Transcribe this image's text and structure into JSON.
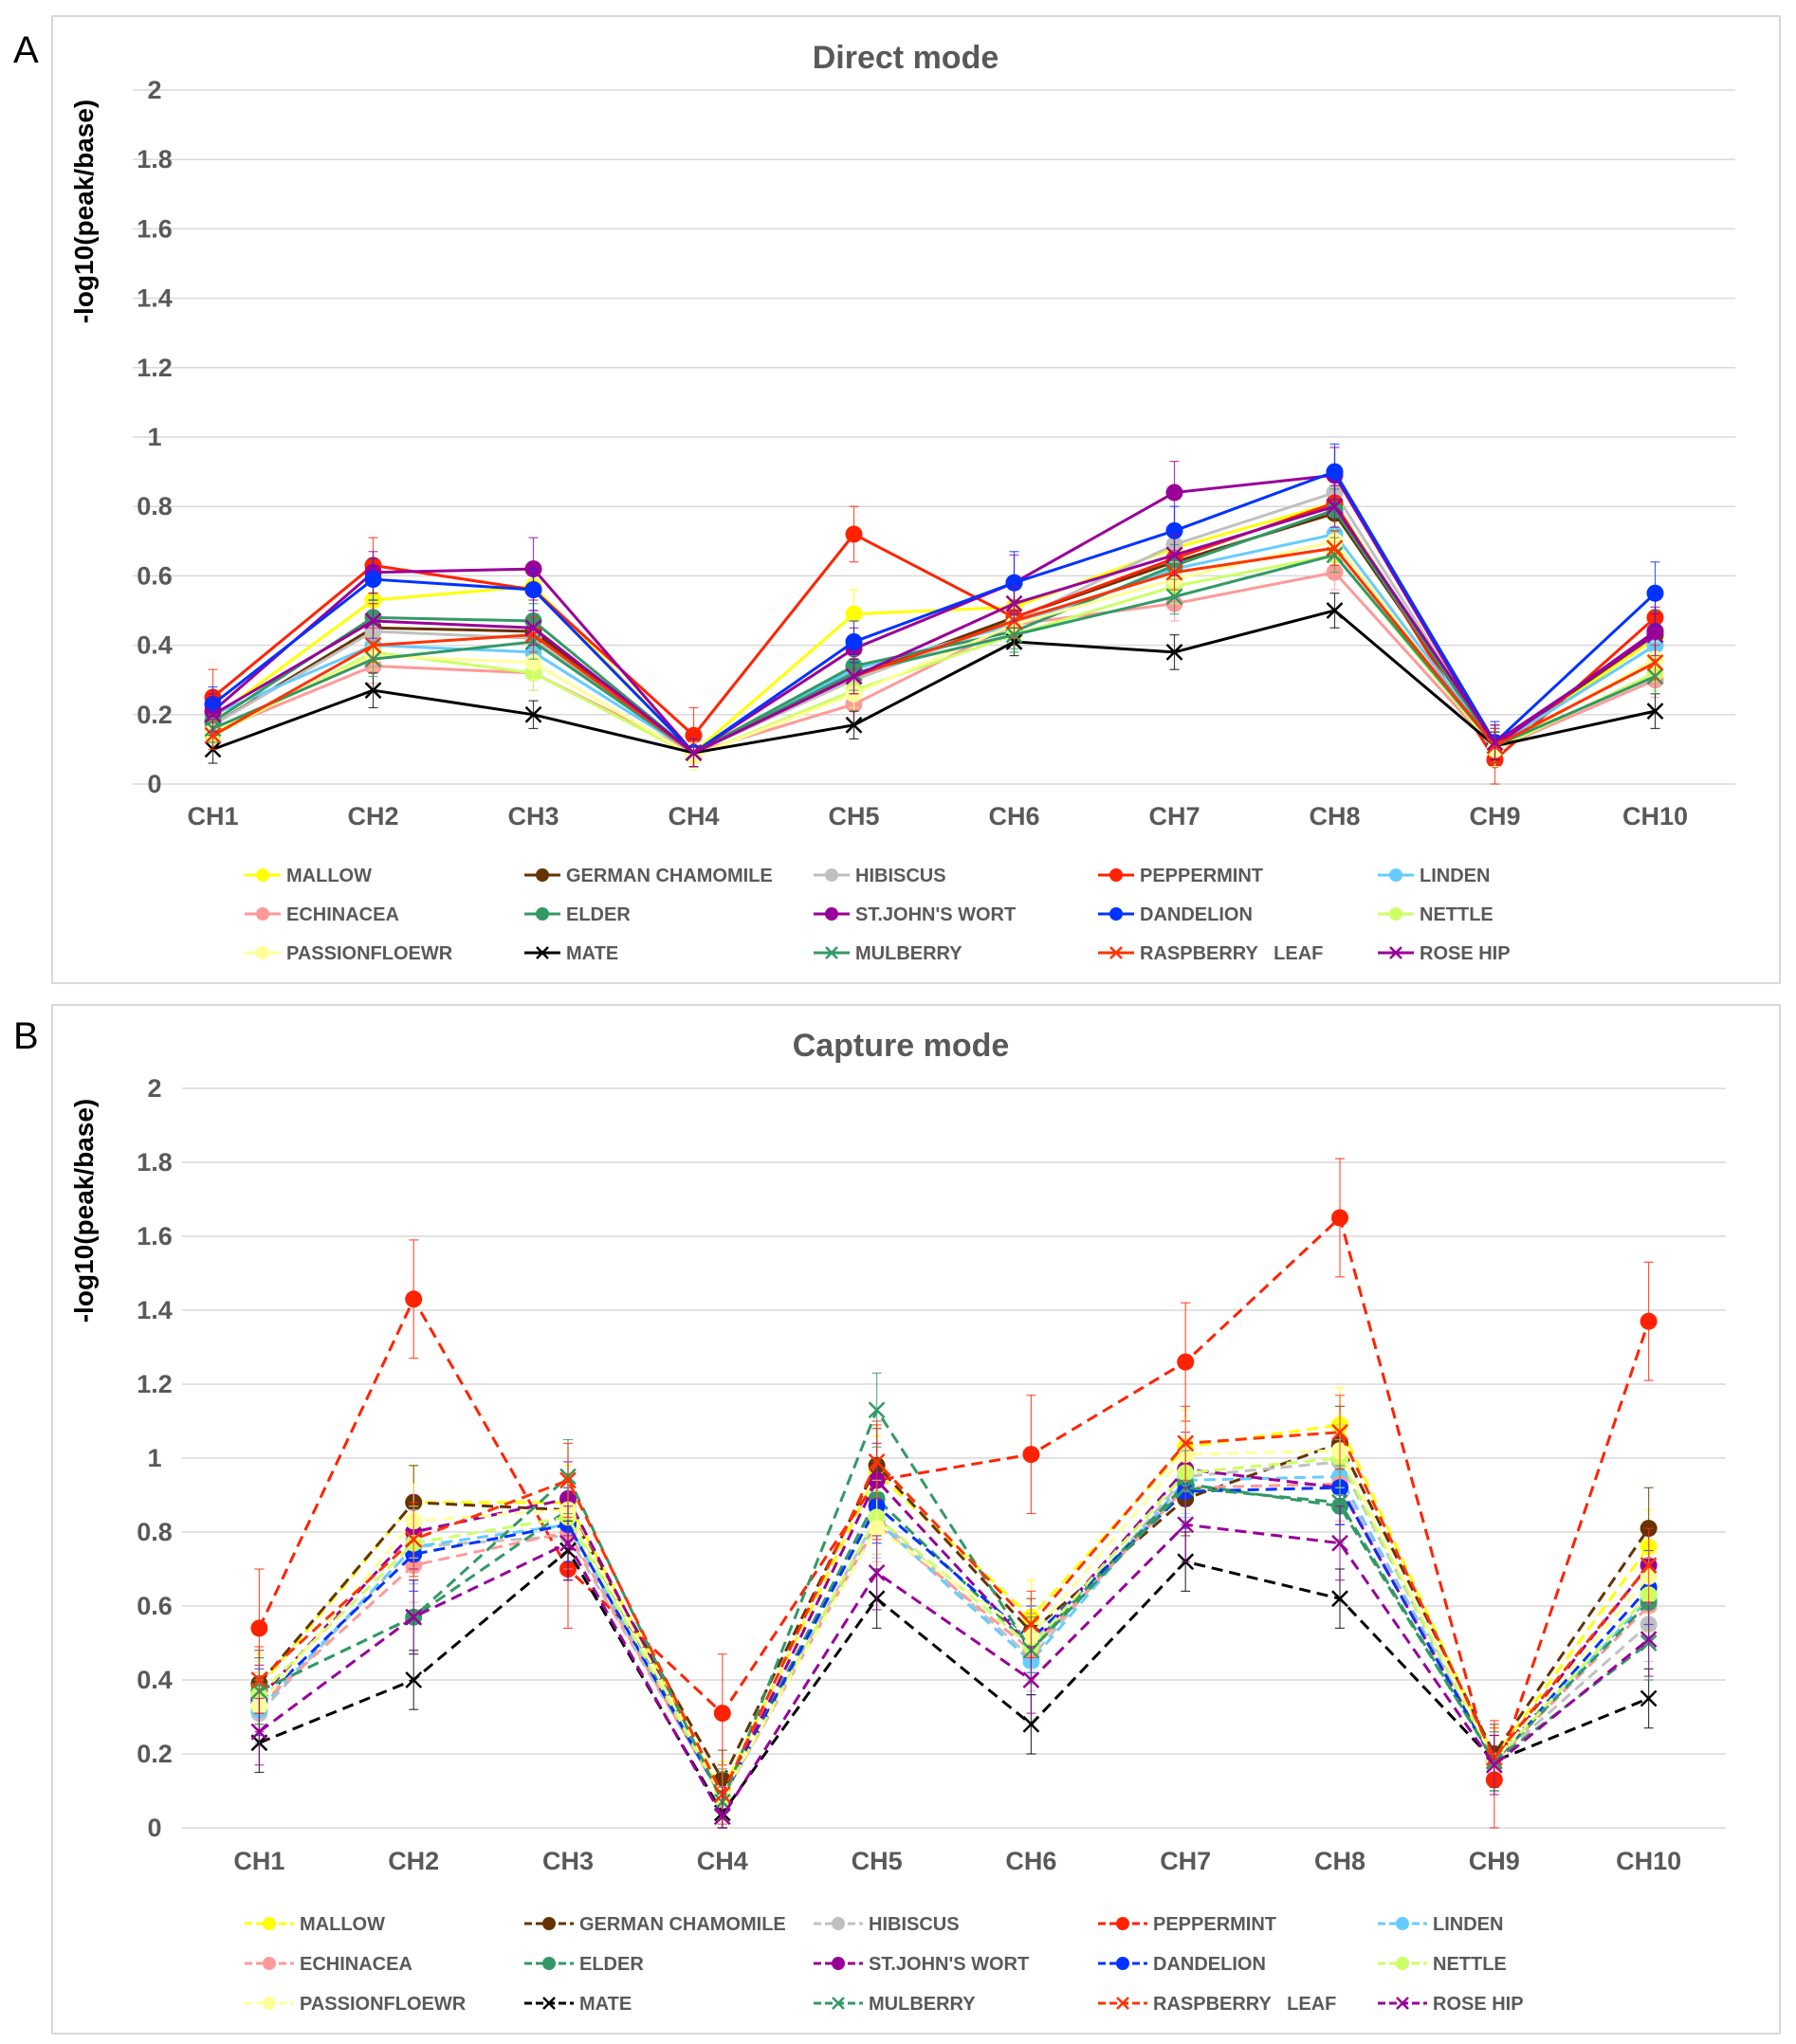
{
  "chart_data": [
    {
      "type": "line",
      "panel_label": "A",
      "title": "Direct mode",
      "xlabel": "",
      "ylabel": "-log10(peak/base)",
      "ylim": [
        0,
        2
      ],
      "ytick_labels": [
        "0",
        "0.2",
        "0.4",
        "0.6",
        "0.8",
        "1",
        "1.2",
        "1.4",
        "1.6",
        "1.8",
        "2"
      ],
      "categories": [
        "CH1",
        "CH2",
        "CH3",
        "CH4",
        "CH5",
        "CH6",
        "CH7",
        "CH8",
        "CH9",
        "CH10"
      ],
      "grid": true,
      "line_style": "solid",
      "legend_position": "bottom",
      "series": [
        {
          "name": "MALLOW",
          "color": "#FFFF00",
          "marker": "circle",
          "values": [
            0.19,
            0.53,
            0.57,
            0.09,
            0.49,
            0.51,
            0.68,
            0.81,
            0.1,
            0.42
          ],
          "errors": [
            0.05,
            0.05,
            0.05,
            0.04,
            0.07,
            0.06,
            0.06,
            0.06,
            0.05,
            0.06
          ]
        },
        {
          "name": "GERMAN CHAMOMILE",
          "color": "#663300",
          "marker": "circle",
          "values": [
            0.17,
            0.45,
            0.44,
            0.09,
            0.31,
            0.48,
            0.64,
            0.78,
            0.11,
            0.43
          ],
          "errors": [
            0.04,
            0.05,
            0.05,
            0.04,
            0.05,
            0.05,
            0.06,
            0.06,
            0.05,
            0.06
          ]
        },
        {
          "name": "HIBISCUS",
          "color": "#C0C0C0",
          "marker": "circle",
          "values": [
            0.17,
            0.44,
            0.42,
            0.09,
            0.3,
            0.47,
            0.69,
            0.84,
            0.11,
            0.4
          ],
          "errors": [
            0.04,
            0.05,
            0.05,
            0.04,
            0.05,
            0.05,
            0.06,
            0.06,
            0.05,
            0.06
          ]
        },
        {
          "name": "PEPPERMINT",
          "color": "#FF2200",
          "marker": "circle",
          "values": [
            0.25,
            0.63,
            0.56,
            0.14,
            0.72,
            0.48,
            0.65,
            0.81,
            0.07,
            0.48
          ],
          "errors": [
            0.08,
            0.08,
            0.07,
            0.08,
            0.08,
            0.08,
            0.07,
            0.07,
            0.08,
            0.08
          ]
        },
        {
          "name": "LINDEN",
          "color": "#66CCFF",
          "marker": "circle",
          "values": [
            0.2,
            0.4,
            0.38,
            0.09,
            0.33,
            0.46,
            0.62,
            0.72,
            0.11,
            0.4
          ],
          "errors": [
            0.04,
            0.05,
            0.05,
            0.04,
            0.05,
            0.05,
            0.05,
            0.06,
            0.05,
            0.05
          ]
        },
        {
          "name": "ECHINACEA",
          "color": "#FF9999",
          "marker": "circle",
          "values": [
            0.15,
            0.34,
            0.32,
            0.09,
            0.23,
            0.46,
            0.52,
            0.61,
            0.1,
            0.3
          ],
          "errors": [
            0.04,
            0.05,
            0.05,
            0.04,
            0.05,
            0.05,
            0.05,
            0.05,
            0.05,
            0.05
          ]
        },
        {
          "name": "ELDER",
          "color": "#339966",
          "marker": "circle",
          "values": [
            0.18,
            0.48,
            0.47,
            0.09,
            0.34,
            0.44,
            0.63,
            0.79,
            0.11,
            0.44
          ],
          "errors": [
            0.04,
            0.05,
            0.05,
            0.04,
            0.05,
            0.05,
            0.06,
            0.06,
            0.05,
            0.06
          ]
        },
        {
          "name": "ST.JOHN'S WORT",
          "color": "#990099",
          "marker": "circle",
          "values": [
            0.21,
            0.61,
            0.62,
            0.09,
            0.39,
            0.58,
            0.84,
            0.89,
            0.11,
            0.44
          ],
          "errors": [
            0.05,
            0.06,
            0.09,
            0.04,
            0.06,
            0.08,
            0.09,
            0.08,
            0.06,
            0.07
          ]
        },
        {
          "name": "DANDELION",
          "color": "#0033FF",
          "marker": "circle",
          "values": [
            0.23,
            0.59,
            0.56,
            0.09,
            0.41,
            0.58,
            0.73,
            0.9,
            0.12,
            0.55
          ],
          "errors": [
            0.05,
            0.06,
            0.06,
            0.04,
            0.06,
            0.09,
            0.07,
            0.08,
            0.06,
            0.09
          ]
        },
        {
          "name": "NETTLE",
          "color": "#CCFF66",
          "marker": "circle",
          "values": [
            0.14,
            0.38,
            0.32,
            0.08,
            0.27,
            0.43,
            0.57,
            0.66,
            0.1,
            0.32
          ],
          "errors": [
            0.04,
            0.05,
            0.05,
            0.04,
            0.05,
            0.05,
            0.05,
            0.05,
            0.05,
            0.05
          ]
        },
        {
          "name": "PASSIONFLOEWR",
          "color": "#FFFF99",
          "marker": "circle",
          "values": [
            0.15,
            0.37,
            0.35,
            0.08,
            0.26,
            0.46,
            0.59,
            0.7,
            0.1,
            0.36
          ],
          "errors": [
            0.04,
            0.05,
            0.05,
            0.04,
            0.05,
            0.05,
            0.05,
            0.05,
            0.05,
            0.05
          ]
        },
        {
          "name": "MATE",
          "color": "#000000",
          "marker": "x",
          "values": [
            0.1,
            0.27,
            0.2,
            0.09,
            0.17,
            0.41,
            0.38,
            0.5,
            0.11,
            0.21
          ],
          "errors": [
            0.04,
            0.05,
            0.04,
            0.04,
            0.04,
            0.04,
            0.05,
            0.05,
            0.04,
            0.05
          ]
        },
        {
          "name": "MULBERRY",
          "color": "#339966",
          "marker": "x",
          "values": [
            0.16,
            0.36,
            0.41,
            0.09,
            0.32,
            0.43,
            0.54,
            0.66,
            0.11,
            0.31
          ],
          "errors": [
            0.04,
            0.05,
            0.05,
            0.04,
            0.05,
            0.05,
            0.05,
            0.05,
            0.05,
            0.05
          ]
        },
        {
          "name": "RASPBERRY   LEAF",
          "color": "#FF3300",
          "marker": "x",
          "values": [
            0.14,
            0.4,
            0.43,
            0.09,
            0.31,
            0.47,
            0.61,
            0.68,
            0.11,
            0.35
          ],
          "errors": [
            0.04,
            0.05,
            0.05,
            0.04,
            0.05,
            0.05,
            0.05,
            0.05,
            0.05,
            0.05
          ]
        },
        {
          "name": "ROSE HIP",
          "color": "#990099",
          "marker": "x",
          "values": [
            0.2,
            0.47,
            0.45,
            0.09,
            0.31,
            0.52,
            0.66,
            0.8,
            0.12,
            0.43
          ],
          "errors": [
            0.05,
            0.05,
            0.05,
            0.04,
            0.05,
            0.05,
            0.06,
            0.06,
            0.05,
            0.06
          ]
        }
      ]
    },
    {
      "type": "line",
      "panel_label": "B",
      "title": "Capture mode",
      "xlabel": "",
      "ylabel": "-log10(peak/base)",
      "ylim": [
        0,
        2
      ],
      "ytick_labels": [
        "0",
        "0.2",
        "0.4",
        "0.6",
        "0.8",
        "1",
        "1.2",
        "1.4",
        "1.6",
        "1.8",
        "2"
      ],
      "categories": [
        "CH1",
        "CH2",
        "CH3",
        "CH4",
        "CH5",
        "CH6",
        "CH7",
        "CH8",
        "CH9",
        "CH10"
      ],
      "grid": true,
      "line_style": "dashed",
      "legend_position": "bottom",
      "series": [
        {
          "name": "MALLOW",
          "color": "#FFFF00",
          "marker": "circle",
          "values": [
            0.38,
            0.88,
            0.88,
            0.1,
            0.96,
            0.57,
            1.03,
            1.09,
            0.19,
            0.76
          ],
          "errors": [
            0.09,
            0.1,
            0.1,
            0.08,
            0.1,
            0.1,
            0.1,
            0.1,
            0.08,
            0.1
          ]
        },
        {
          "name": "GERMAN CHAMOMILE",
          "color": "#663300",
          "marker": "circle",
          "values": [
            0.39,
            0.88,
            0.86,
            0.13,
            0.98,
            0.53,
            0.89,
            1.04,
            0.2,
            0.81
          ],
          "errors": [
            0.09,
            0.1,
            0.1,
            0.08,
            0.1,
            0.09,
            0.1,
            0.1,
            0.08,
            0.11
          ]
        },
        {
          "name": "HIBISCUS",
          "color": "#C0C0C0",
          "marker": "circle",
          "values": [
            0.31,
            0.76,
            0.79,
            0.08,
            0.84,
            0.46,
            0.95,
            0.99,
            0.18,
            0.55
          ],
          "errors": [
            0.09,
            0.1,
            0.1,
            0.08,
            0.1,
            0.09,
            0.1,
            0.1,
            0.08,
            0.1
          ]
        },
        {
          "name": "PEPPERMINT",
          "color": "#FF2200",
          "marker": "circle",
          "values": [
            0.54,
            1.43,
            0.7,
            0.31,
            0.94,
            1.01,
            1.26,
            1.65,
            0.13,
            1.37
          ],
          "errors": [
            0.16,
            0.16,
            0.16,
            0.16,
            0.16,
            0.16,
            0.16,
            0.16,
            0.16,
            0.16
          ]
        },
        {
          "name": "LINDEN",
          "color": "#66CCFF",
          "marker": "circle",
          "values": [
            0.32,
            0.76,
            0.82,
            0.08,
            0.83,
            0.45,
            0.94,
            0.95,
            0.18,
            0.62
          ],
          "errors": [
            0.09,
            0.1,
            0.1,
            0.08,
            0.1,
            0.09,
            0.1,
            0.1,
            0.08,
            0.1
          ]
        },
        {
          "name": "ECHINACEA",
          "color": "#FF9999",
          "marker": "circle",
          "values": [
            0.33,
            0.71,
            0.8,
            0.08,
            0.82,
            0.48,
            0.92,
            0.93,
            0.18,
            0.6
          ],
          "errors": [
            0.09,
            0.1,
            0.1,
            0.08,
            0.1,
            0.09,
            0.1,
            0.1,
            0.08,
            0.1
          ]
        },
        {
          "name": "ELDER",
          "color": "#339966",
          "marker": "circle",
          "values": [
            0.37,
            0.57,
            0.86,
            0.08,
            0.89,
            0.49,
            0.93,
            0.87,
            0.18,
            0.61
          ],
          "errors": [
            0.09,
            0.1,
            0.1,
            0.08,
            0.1,
            0.09,
            0.1,
            0.1,
            0.08,
            0.1
          ]
        },
        {
          "name": "ST.JOHN'S WORT",
          "color": "#990099",
          "marker": "circle",
          "values": [
            0.35,
            0.8,
            0.89,
            0.08,
            0.94,
            0.49,
            0.97,
            0.92,
            0.18,
            0.71
          ],
          "errors": [
            0.09,
            0.1,
            0.1,
            0.08,
            0.1,
            0.09,
            0.1,
            0.1,
            0.08,
            0.1
          ]
        },
        {
          "name": "DANDELION",
          "color": "#0033FF",
          "marker": "circle",
          "values": [
            0.34,
            0.74,
            0.82,
            0.08,
            0.87,
            0.51,
            0.91,
            0.92,
            0.18,
            0.65
          ],
          "errors": [
            0.09,
            0.1,
            0.1,
            0.08,
            0.1,
            0.09,
            0.1,
            0.1,
            0.08,
            0.1
          ]
        },
        {
          "name": "NETTLE",
          "color": "#CCFF66",
          "marker": "circle",
          "values": [
            0.36,
            0.77,
            0.84,
            0.08,
            0.84,
            0.49,
            0.96,
            1.0,
            0.18,
            0.63
          ],
          "errors": [
            0.09,
            0.1,
            0.1,
            0.08,
            0.1,
            0.09,
            0.1,
            0.1,
            0.08,
            0.1
          ]
        },
        {
          "name": "PASSIONFLOEWR",
          "color": "#FFFF99",
          "marker": "circle",
          "values": [
            0.33,
            0.83,
            0.86,
            0.09,
            0.81,
            0.52,
            1.01,
            1.02,
            0.18,
            0.68
          ],
          "errors": [
            0.09,
            0.1,
            0.1,
            0.08,
            0.1,
            0.09,
            0.1,
            0.1,
            0.08,
            0.1
          ]
        },
        {
          "name": "MATE",
          "color": "#000000",
          "marker": "x",
          "values": [
            0.23,
            0.4,
            0.75,
            0.04,
            0.62,
            0.28,
            0.72,
            0.62,
            0.18,
            0.35
          ],
          "errors": [
            0.08,
            0.08,
            0.08,
            0.06,
            0.08,
            0.08,
            0.08,
            0.08,
            0.07,
            0.08
          ]
        },
        {
          "name": "MULBERRY",
          "color": "#339966",
          "marker": "x",
          "values": [
            0.37,
            0.57,
            0.95,
            0.07,
            1.13,
            0.48,
            0.92,
            0.88,
            0.18,
            0.5
          ],
          "errors": [
            0.09,
            0.1,
            0.1,
            0.08,
            0.1,
            0.09,
            0.1,
            0.1,
            0.08,
            0.1
          ]
        },
        {
          "name": "RASPBERRY   LEAF",
          "color": "#FF3300",
          "marker": "x",
          "values": [
            0.4,
            0.78,
            0.94,
            0.09,
            0.99,
            0.55,
            1.04,
            1.07,
            0.19,
            0.71
          ],
          "errors": [
            0.09,
            0.1,
            0.1,
            0.08,
            0.1,
            0.09,
            0.1,
            0.1,
            0.08,
            0.1
          ]
        },
        {
          "name": "ROSE HIP",
          "color": "#990099",
          "marker": "x",
          "values": [
            0.26,
            0.57,
            0.77,
            0.03,
            0.69,
            0.4,
            0.82,
            0.77,
            0.17,
            0.51
          ],
          "errors": [
            0.09,
            0.1,
            0.1,
            0.08,
            0.1,
            0.09,
            0.1,
            0.1,
            0.08,
            0.1
          ]
        }
      ]
    }
  ]
}
